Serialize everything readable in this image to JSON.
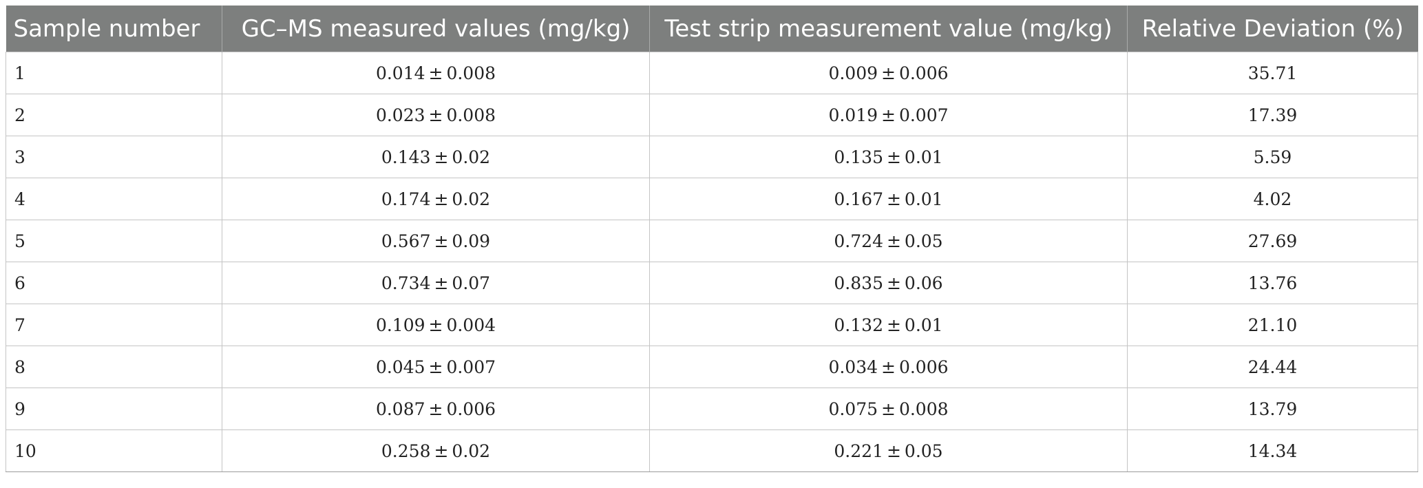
{
  "table": {
    "headers": [
      "Sample number",
      "GC–MS measured values (mg/kg)",
      "Test strip measurement value (mg/kg)",
      "Relative Deviation (%)"
    ],
    "rows": [
      [
        "1",
        "0.014 ± 0.008",
        "0.009 ± 0.006",
        "35.71"
      ],
      [
        "2",
        "0.023 ± 0.008",
        "0.019 ± 0.007",
        "17.39"
      ],
      [
        "3",
        "0.143 ± 0.02",
        "0.135 ± 0.01",
        "5.59"
      ],
      [
        "4",
        "0.174 ± 0.02",
        "0.167 ± 0.01",
        "4.02"
      ],
      [
        "5",
        "0.567 ± 0.09",
        "0.724 ± 0.05",
        "27.69"
      ],
      [
        "6",
        "0.734 ± 0.07",
        "0.835 ± 0.06",
        "13.76"
      ],
      [
        "7",
        "0.109 ± 0.004",
        "0.132 ± 0.01",
        "21.10"
      ],
      [
        "8",
        "0.045 ± 0.007",
        "0.034 ± 0.006",
        "24.44"
      ],
      [
        "9",
        "0.087 ± 0.006",
        "0.075 ± 0.008",
        "13.79"
      ],
      [
        "10",
        "0.258 ± 0.02",
        "0.221 ± 0.05",
        "14.34"
      ]
    ]
  },
  "colors": {
    "header_background": "#7d7f7e",
    "header_text": "#ffffff",
    "grid_line": "#c4c4c4"
  }
}
